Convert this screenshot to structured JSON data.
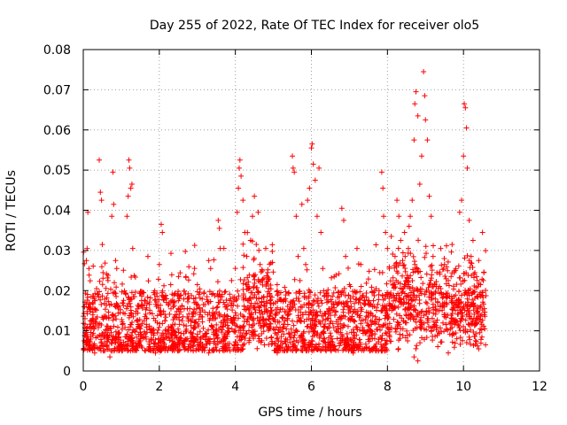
{
  "chart_data": {
    "type": "scatter",
    "title": "Day 255 of 2022, Rate Of TEC Index for receiver olo5",
    "xlabel": "GPS time / hours",
    "ylabel": "ROTI / TECUs",
    "xlim": [
      0,
      12
    ],
    "ylim": [
      0,
      0.08
    ],
    "xticks": [
      0,
      2,
      4,
      6,
      8,
      10,
      12
    ],
    "xtick_labels": [
      "0",
      "2",
      "4",
      "6",
      "8",
      "10",
      "12"
    ],
    "yticks": [
      0,
      0.01,
      0.02,
      0.03,
      0.04,
      0.05,
      0.06,
      0.07,
      0.08
    ],
    "ytick_labels": [
      "0",
      "0.01",
      "0.02",
      "0.03",
      "0.04",
      "0.05",
      "0.06",
      "0.07",
      "0.08"
    ],
    "grid": true,
    "marker": "+",
    "color": "#ff0000",
    "series": [
      {
        "name": "ROTI",
        "points": [
          [
            0.02,
            0.0075
          ],
          [
            0.05,
            0.0095
          ],
          [
            0.08,
            0.0275
          ],
          [
            0.1,
            0.0305
          ],
          [
            0.12,
            0.0395
          ],
          [
            0.15,
            0.0255
          ],
          [
            0.18,
            0.0125
          ],
          [
            0.2,
            0.0085
          ],
          [
            0.25,
            0.0185
          ],
          [
            0.28,
            0.0105
          ],
          [
            0.3,
            0.0155
          ],
          [
            0.35,
            0.0205
          ],
          [
            0.4,
            0.0115
          ],
          [
            0.42,
            0.0525
          ],
          [
            0.45,
            0.0445
          ],
          [
            0.48,
            0.0425
          ],
          [
            0.5,
            0.0315
          ],
          [
            0.52,
            0.0245
          ],
          [
            0.55,
            0.0135
          ],
          [
            0.6,
            0.0095
          ],
          [
            0.65,
            0.0225
          ],
          [
            0.7,
            0.0105
          ],
          [
            0.75,
            0.0385
          ],
          [
            0.78,
            0.0495
          ],
          [
            0.8,
            0.0415
          ],
          [
            0.85,
            0.0275
          ],
          [
            0.88,
            0.0255
          ],
          [
            0.9,
            0.0165
          ],
          [
            0.95,
            0.0095
          ],
          [
            1.0,
            0.0065
          ],
          [
            1.05,
            0.0145
          ],
          [
            1.1,
            0.0085
          ],
          [
            1.15,
            0.0385
          ],
          [
            1.18,
            0.0435
          ],
          [
            1.2,
            0.0525
          ],
          [
            1.22,
            0.0505
          ],
          [
            1.25,
            0.0455
          ],
          [
            1.28,
            0.0465
          ],
          [
            1.3,
            0.0305
          ],
          [
            1.35,
            0.0185
          ],
          [
            1.4,
            0.0125
          ],
          [
            1.45,
            0.0075
          ],
          [
            1.5,
            0.0105
          ],
          [
            1.55,
            0.0165
          ],
          [
            1.6,
            0.0125
          ],
          [
            1.65,
            0.0085
          ],
          [
            1.7,
            0.0285
          ],
          [
            1.75,
            0.0145
          ],
          [
            1.8,
            0.0105
          ],
          [
            1.85,
            0.0195
          ],
          [
            1.9,
            0.0125
          ],
          [
            1.95,
            0.0095
          ],
          [
            2.0,
            0.0265
          ],
          [
            2.05,
            0.0365
          ],
          [
            2.08,
            0.0345
          ],
          [
            2.1,
            0.0185
          ],
          [
            2.15,
            0.0125
          ],
          [
            2.2,
            0.0085
          ],
          [
            2.25,
            0.0165
          ],
          [
            2.3,
            0.0215
          ],
          [
            2.35,
            0.0115
          ],
          [
            2.4,
            0.0095
          ],
          [
            2.5,
            0.0175
          ],
          [
            2.6,
            0.0125
          ],
          [
            2.7,
            0.0235
          ],
          [
            2.8,
            0.0155
          ],
          [
            2.9,
            0.0105
          ],
          [
            3.0,
            0.0215
          ],
          [
            3.1,
            0.0135
          ],
          [
            3.2,
            0.0165
          ],
          [
            3.3,
            0.0275
          ],
          [
            3.35,
            0.0255
          ],
          [
            3.4,
            0.0145
          ],
          [
            3.5,
            0.0115
          ],
          [
            3.55,
            0.0375
          ],
          [
            3.58,
            0.0355
          ],
          [
            3.6,
            0.0305
          ],
          [
            3.65,
            0.0185
          ],
          [
            3.7,
            0.0125
          ],
          [
            3.8,
            0.0165
          ],
          [
            3.9,
            0.0225
          ],
          [
            4.0,
            0.0145
          ],
          [
            4.05,
            0.0395
          ],
          [
            4.08,
            0.0455
          ],
          [
            4.1,
            0.0505
          ],
          [
            4.12,
            0.0525
          ],
          [
            4.15,
            0.0485
          ],
          [
            4.2,
            0.0425
          ],
          [
            4.25,
            0.0345
          ],
          [
            4.3,
            0.0285
          ],
          [
            4.35,
            0.0205
          ],
          [
            4.4,
            0.0325
          ],
          [
            4.45,
            0.0385
          ],
          [
            4.5,
            0.0435
          ],
          [
            4.55,
            0.0315
          ],
          [
            4.6,
            0.0395
          ],
          [
            4.65,
            0.0265
          ],
          [
            4.7,
            0.0225
          ],
          [
            4.75,
            0.0185
          ],
          [
            4.8,
            0.0305
          ],
          [
            4.85,
            0.0245
          ],
          [
            4.9,
            0.0135
          ],
          [
            5.0,
            0.0105
          ],
          [
            5.1,
            0.0215
          ],
          [
            5.2,
            0.0175
          ],
          [
            5.3,
            0.0125
          ],
          [
            5.4,
            0.0195
          ],
          [
            5.5,
            0.0535
          ],
          [
            5.52,
            0.0505
          ],
          [
            5.55,
            0.0495
          ],
          [
            5.6,
            0.0385
          ],
          [
            5.65,
            0.0285
          ],
          [
            5.7,
            0.0225
          ],
          [
            5.75,
            0.0415
          ],
          [
            5.8,
            0.0305
          ],
          [
            5.85,
            0.0265
          ],
          [
            5.9,
            0.0425
          ],
          [
            5.95,
            0.0455
          ],
          [
            6.0,
            0.0555
          ],
          [
            6.02,
            0.0565
          ],
          [
            6.05,
            0.0515
          ],
          [
            6.1,
            0.0475
          ],
          [
            6.15,
            0.0385
          ],
          [
            6.2,
            0.0505
          ],
          [
            6.25,
            0.0345
          ],
          [
            6.3,
            0.0255
          ],
          [
            6.4,
            0.0185
          ],
          [
            6.5,
            0.0145
          ],
          [
            6.6,
            0.0235
          ],
          [
            6.7,
            0.0195
          ],
          [
            6.8,
            0.0405
          ],
          [
            6.85,
            0.0375
          ],
          [
            6.9,
            0.0285
          ],
          [
            7.0,
            0.0215
          ],
          [
            7.1,
            0.0185
          ],
          [
            7.2,
            0.0305
          ],
          [
            7.3,
            0.0265
          ],
          [
            7.4,
            0.0175
          ],
          [
            7.5,
            0.0145
          ],
          [
            7.6,
            0.0125
          ],
          [
            7.7,
            0.0205
          ],
          [
            7.8,
            0.0245
          ],
          [
            7.85,
            0.0495
          ],
          [
            7.88,
            0.0455
          ],
          [
            7.9,
            0.0385
          ],
          [
            7.95,
            0.0345
          ],
          [
            8.0,
            0.0305
          ],
          [
            8.05,
            0.0255
          ],
          [
            8.1,
            0.0335
          ],
          [
            8.15,
            0.0215
          ],
          [
            8.2,
            0.0285
          ],
          [
            8.25,
            0.0425
          ],
          [
            8.3,
            0.0385
          ],
          [
            8.35,
            0.0325
          ],
          [
            8.4,
            0.0275
          ],
          [
            8.45,
            0.0345
          ],
          [
            8.5,
            0.0225
          ],
          [
            8.55,
            0.0305
          ],
          [
            8.6,
            0.0385
          ],
          [
            8.65,
            0.0425
          ],
          [
            8.7,
            0.0575
          ],
          [
            8.72,
            0.0665
          ],
          [
            8.75,
            0.0695
          ],
          [
            8.8,
            0.0635
          ],
          [
            8.85,
            0.0465
          ],
          [
            8.9,
            0.0535
          ],
          [
            8.95,
            0.0745
          ],
          [
            8.98,
            0.0685
          ],
          [
            9.0,
            0.0625
          ],
          [
            9.05,
            0.0575
          ],
          [
            9.1,
            0.0435
          ],
          [
            9.15,
            0.0385
          ],
          [
            9.2,
            0.0285
          ],
          [
            9.3,
            0.0245
          ],
          [
            9.4,
            0.0305
          ],
          [
            9.5,
            0.0265
          ],
          [
            9.6,
            0.0225
          ],
          [
            9.7,
            0.0315
          ],
          [
            9.8,
            0.0255
          ],
          [
            9.9,
            0.0395
          ],
          [
            9.95,
            0.0425
          ],
          [
            10.0,
            0.0535
          ],
          [
            10.02,
            0.0665
          ],
          [
            10.05,
            0.0655
          ],
          [
            10.08,
            0.0605
          ],
          [
            10.1,
            0.0505
          ],
          [
            10.15,
            0.0375
          ],
          [
            10.2,
            0.0285
          ],
          [
            10.25,
            0.0325
          ],
          [
            10.3,
            0.0245
          ],
          [
            10.35,
            0.0185
          ],
          [
            10.4,
            0.0275
          ],
          [
            10.45,
            0.0215
          ],
          [
            10.5,
            0.0345
          ],
          [
            10.52,
            0.0225
          ],
          [
            10.55,
            0.0155
          ],
          [
            10.56,
            0.0105
          ],
          [
            10.58,
            0.0065
          ],
          [
            0.3,
            0.0045
          ],
          [
            0.7,
            0.0035
          ],
          [
            1.1,
            0.0055
          ],
          [
            1.9,
            0.0045
          ],
          [
            2.7,
            0.0055
          ],
          [
            3.3,
            0.0045
          ],
          [
            4.2,
            0.0055
          ],
          [
            5.1,
            0.0045
          ],
          [
            6.3,
            0.0055
          ],
          [
            7.1,
            0.0045
          ],
          [
            8.8,
            0.0025
          ],
          [
            8.7,
            0.0035
          ],
          [
            9.6,
            0.0045
          ],
          [
            10.4,
            0.0055
          ]
        ]
      }
    ],
    "background_density": {
      "description": "Dense band of ROTI points between ~0.005 and ~0.02 across 0–10.6 h",
      "x_range": [
        0.0,
        10.6
      ],
      "y_core": [
        0.005,
        0.02
      ]
    }
  }
}
